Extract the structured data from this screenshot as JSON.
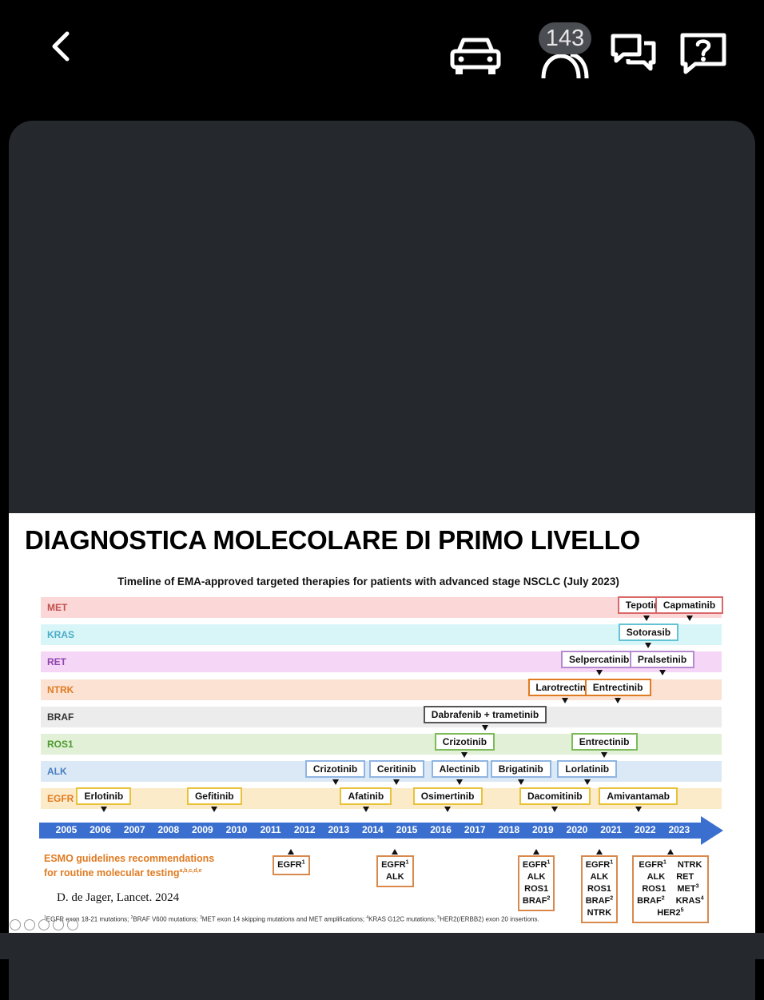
{
  "header": {
    "badge_count": "143",
    "icons": [
      "back-icon",
      "car-icon",
      "people-icon",
      "chat-icon",
      "help-icon"
    ]
  },
  "slide": {
    "title": "DIAGNOSTICA MOLECOLARE DI PRIMO LIVELLO",
    "subtitle": "Timeline of EMA-approved targeted therapies for patients with advanced stage NSCLC (July 2023)",
    "citation": "D. de Jager, Lancet. 2024",
    "rows": [
      {
        "label": "MET",
        "label_color": "#c0504d",
        "bg": "#fbd7d7",
        "border": "#d9686b",
        "drugs": [
          {
            "name": "Tepotinib",
            "pos": 2022.05
          },
          {
            "name": "Capmatinib",
            "pos": 2023.3
          }
        ]
      },
      {
        "label": "KRAS",
        "label_color": "#4bacc6",
        "bg": "#d8f6f8",
        "border": "#62c3d6",
        "drugs": [
          {
            "name": "Sotorasib",
            "pos": 2022.1
          }
        ]
      },
      {
        "label": "RET",
        "label_color": "#8e44ad",
        "bg": "#f6d6f6",
        "border": "#b68ad0",
        "drugs": [
          {
            "name": "Selpercatinib",
            "pos": 2020.65
          },
          {
            "name": "Pralsetinib",
            "pos": 2022.5
          }
        ]
      },
      {
        "label": "NTRK",
        "label_color": "#e07b22",
        "bg": "#fbe2d3",
        "border": "#e07b22",
        "drugs": [
          {
            "name": "Larotrectinib",
            "pos": 2019.65
          },
          {
            "name": "Entrectinib",
            "pos": 2021.2
          }
        ]
      },
      {
        "label": "BRAF",
        "label_color": "#333333",
        "bg": "#ececec",
        "border": "#555555",
        "drugs": [
          {
            "name": "Dabrafenib + trametinib",
            "pos": 2017.3
          }
        ]
      },
      {
        "label": "ROS1",
        "label_color": "#4e9a2e",
        "bg": "#e1f0d6",
        "border": "#7dbb5a",
        "drugs": [
          {
            "name": "Crizotinib",
            "pos": 2016.7
          },
          {
            "name": "Entrectinib",
            "pos": 2020.8
          }
        ]
      },
      {
        "label": "ALK",
        "label_color": "#4a7fc1",
        "bg": "#dbe8f5",
        "border": "#8fb5e3",
        "drugs": [
          {
            "name": "Crizotinib",
            "pos": 2012.9
          },
          {
            "name": "Ceritinib",
            "pos": 2014.7
          },
          {
            "name": "Alectinib",
            "pos": 2016.55
          },
          {
            "name": "Brigatinib",
            "pos": 2018.35
          },
          {
            "name": "Lorlatinib",
            "pos": 2020.3
          }
        ]
      },
      {
        "label": "EGFR",
        "label_color": "#e07b22",
        "bg": "#fbebc8",
        "border": "#e8c23a",
        "drugs": [
          {
            "name": "Erlotinib",
            "pos": 2006.1
          },
          {
            "name": "Gefitinib",
            "pos": 2009.35
          },
          {
            "name": "Afatinib",
            "pos": 2013.8
          },
          {
            "name": "Osimertinib",
            "pos": 2016.2
          },
          {
            "name": "Dacomitinib",
            "pos": 2019.35
          },
          {
            "name": "Amivantamab",
            "pos": 2021.8
          }
        ]
      }
    ],
    "years": [
      "2005",
      "2006",
      "2007",
      "2008",
      "2009",
      "2010",
      "2011",
      "2012",
      "2013",
      "2014",
      "2015",
      "2016",
      "2017",
      "2018",
      "2019",
      "2020",
      "2021",
      "2022",
      "2023"
    ],
    "esmo": {
      "label_line1": "ESMO guidelines recommendations",
      "label_line2": "for routine molecular testing",
      "label_sup": "a,b,c,d,e",
      "boxes": [
        {
          "pos": 2011.6,
          "lines": [
            [
              "EGFR",
              "1"
            ]
          ]
        },
        {
          "pos": 2014.65,
          "lines": [
            [
              "EGFR",
              "1"
            ],
            [
              "ALK",
              ""
            ]
          ]
        },
        {
          "pos": 2018.8,
          "lines": [
            [
              "EGFR",
              "1"
            ],
            [
              "ALK",
              ""
            ],
            [
              "ROS1",
              ""
            ],
            [
              "BRAF",
              "2"
            ]
          ]
        },
        {
          "pos": 2020.65,
          "lines": [
            [
              "EGFR",
              "1"
            ],
            [
              "ALK",
              ""
            ],
            [
              "ROS1",
              ""
            ],
            [
              "BRAF",
              "2"
            ],
            [
              "NTRK",
              ""
            ]
          ]
        },
        {
          "pos": 2022.75,
          "lines": [
            [
              "EGFR",
              "1",
              "NTRK",
              ""
            ],
            [
              "ALK",
              "",
              "RET",
              ""
            ],
            [
              "ROS1",
              "",
              "MET",
              "3"
            ],
            [
              "BRAF",
              "2",
              "KRAS",
              "4"
            ],
            [
              "HER2",
              "5",
              "",
              ""
            ]
          ]
        }
      ]
    },
    "footnote": [
      [
        "",
        "1"
      ],
      [
        "EGFR exon 18-21 mutations; ",
        "2"
      ],
      [
        "BRAF V600 mutations; ",
        "3"
      ],
      [
        "MET exon 14 skipping mutations and MET amplifications; ",
        "4"
      ],
      [
        "KRAS G12C mutations; ",
        "5"
      ],
      [
        "HER2(/ERBB2) exon 20 insertions.",
        ""
      ]
    ]
  }
}
